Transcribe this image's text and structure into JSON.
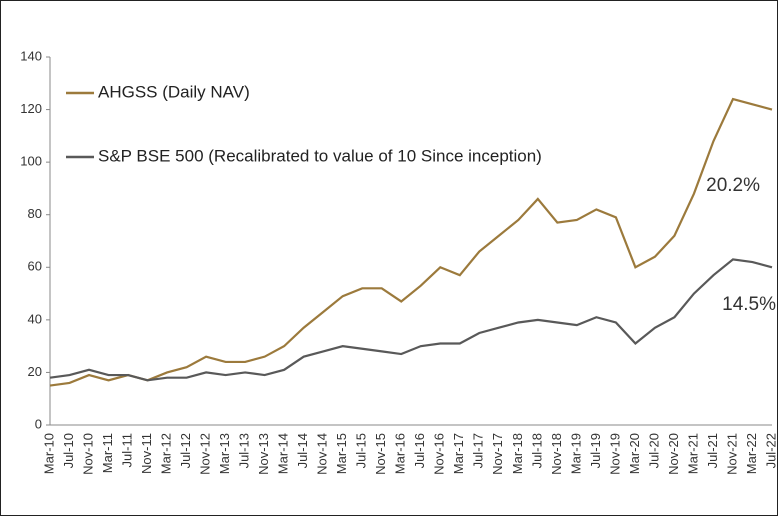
{
  "chart_data": {
    "type": "line",
    "categories": [
      "Mar-10",
      "Jul-10",
      "Nov-10",
      "Mar-11",
      "Jul-11",
      "Nov-11",
      "Mar-12",
      "Jul-12",
      "Nov-12",
      "Mar-13",
      "Jul-13",
      "Nov-13",
      "Mar-14",
      "Jul-14",
      "Nov-14",
      "Mar-15",
      "Jul-15",
      "Nov-15",
      "Mar-16",
      "Jul-16",
      "Nov-16",
      "Mar-17",
      "Jul-17",
      "Nov-17",
      "Mar-18",
      "Jul-18",
      "Nov-18",
      "Mar-19",
      "Jul-19",
      "Nov-19",
      "Mar-20",
      "Jul-20",
      "Nov-20",
      "Mar-21",
      "Jul-21",
      "Nov-21",
      "Mar-22",
      "Jul-22"
    ],
    "series": [
      {
        "name": "AHGSS (Daily NAV)",
        "color": "#9c7a3c",
        "values": [
          15,
          16,
          19,
          17,
          19,
          17,
          20,
          22,
          26,
          24,
          24,
          26,
          30,
          37,
          43,
          49,
          52,
          52,
          47,
          53,
          60,
          57,
          66,
          72,
          78,
          86,
          77,
          78,
          82,
          79,
          60,
          64,
          72,
          88,
          108,
          124,
          122,
          120
        ]
      },
      {
        "name": "S&P BSE 500 (Recalibrated to value of 10 Since inception)",
        "color": "#595959",
        "values": [
          18,
          19,
          21,
          19,
          19,
          17,
          18,
          18,
          20,
          19,
          20,
          19,
          21,
          26,
          28,
          30,
          29,
          28,
          27,
          30,
          31,
          31,
          35,
          37,
          39,
          40,
          39,
          38,
          41,
          39,
          31,
          37,
          41,
          50,
          57,
          63,
          62,
          60
        ]
      }
    ],
    "annotations": [
      "20.2%",
      "14.5%"
    ],
    "ylim": [
      0,
      140
    ],
    "yticks": [
      0,
      20,
      40,
      60,
      80,
      100,
      120,
      140
    ]
  }
}
